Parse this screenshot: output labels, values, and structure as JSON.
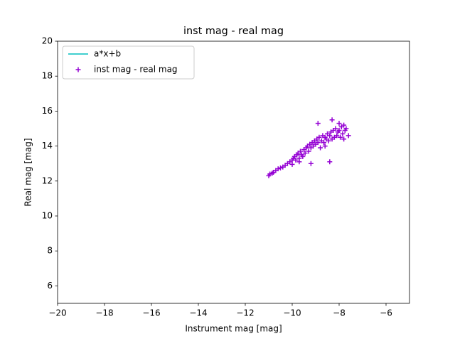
{
  "chart_data": {
    "type": "scatter",
    "title": "inst mag - real mag",
    "x_label": "Instrument mag [mag]",
    "y_label": "Real mag [mag]",
    "xlim": [
      -20,
      -5
    ],
    "ylim": [
      5,
      20
    ],
    "xticks": [
      {
        "value": -20,
        "label": "−20"
      },
      {
        "value": -18,
        "label": "−18"
      },
      {
        "value": -16,
        "label": "−16"
      },
      {
        "value": -14,
        "label": "−14"
      },
      {
        "value": -12,
        "label": "−12"
      },
      {
        "value": -10,
        "label": "−10"
      },
      {
        "value": -8,
        "label": "−8"
      },
      {
        "value": -6,
        "label": "−6"
      }
    ],
    "yticks": [
      6,
      8,
      10,
      12,
      14,
      16,
      18,
      20
    ],
    "grid": false,
    "legend": "upper left",
    "series": [
      {
        "name": "a*x+b",
        "kind": "line",
        "color": "#00bfbf",
        "x": [],
        "values": []
      },
      {
        "name": "inst mag - real mag",
        "kind": "scatter",
        "color": "#9400d3",
        "x": [
          -11.0,
          -10.95,
          -10.85,
          -10.8,
          -10.7,
          -10.6,
          -10.5,
          -10.4,
          -10.3,
          -10.2,
          -10.1,
          -10.0,
          -10.0,
          -9.95,
          -9.9,
          -9.85,
          -9.8,
          -9.75,
          -9.7,
          -9.65,
          -9.6,
          -9.55,
          -9.5,
          -9.45,
          -9.4,
          -9.35,
          -9.3,
          -9.25,
          -9.2,
          -9.15,
          -9.1,
          -9.05,
          -9.0,
          -8.95,
          -8.9,
          -8.85,
          -8.8,
          -8.75,
          -8.7,
          -8.65,
          -8.6,
          -8.55,
          -8.5,
          -8.45,
          -8.4,
          -8.35,
          -8.3,
          -8.25,
          -8.2,
          -8.15,
          -8.1,
          -8.05,
          -8.0,
          -7.95,
          -7.9,
          -7.85,
          -7.8,
          -7.75,
          -7.7,
          -7.6,
          -8.4,
          -8.3,
          -8.9,
          -9.2,
          -9.7,
          -8.6,
          -8.0,
          -7.8
        ],
        "values": [
          12.3,
          12.4,
          12.45,
          12.5,
          12.6,
          12.7,
          12.75,
          12.8,
          12.9,
          13.0,
          13.1,
          13.2,
          12.95,
          13.3,
          13.4,
          13.2,
          13.5,
          13.6,
          13.3,
          13.7,
          13.5,
          13.4,
          13.8,
          13.6,
          13.9,
          14.0,
          13.7,
          14.1,
          13.9,
          14.2,
          14.0,
          14.3,
          14.1,
          14.4,
          14.2,
          14.5,
          13.9,
          14.3,
          14.6,
          14.2,
          14.5,
          14.4,
          14.7,
          14.3,
          14.6,
          14.8,
          14.4,
          14.9,
          14.5,
          15.0,
          14.6,
          14.8,
          14.9,
          14.5,
          15.1,
          14.7,
          15.2,
          14.9,
          15.0,
          14.6,
          13.1,
          15.5,
          15.3,
          13.0,
          13.1,
          14.0,
          15.3,
          14.4
        ]
      }
    ]
  }
}
